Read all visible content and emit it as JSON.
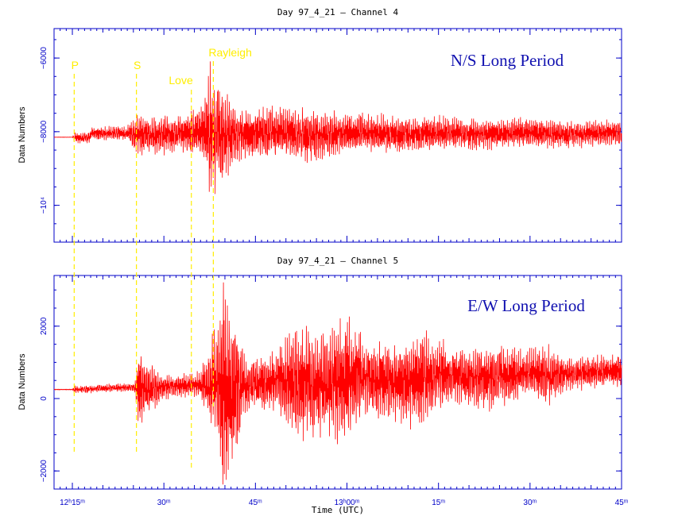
{
  "chart_data": [
    {
      "type": "line",
      "title": "Day 97_4_21  — Channel 4",
      "annotation": "N/S Long Period",
      "ylabel": "Data Numbers",
      "ylim": [
        -11000,
        -5200
      ],
      "yticks": [
        {
          "value": -6000,
          "label": "−6000"
        },
        {
          "value": -8000,
          "label": "−8000"
        },
        {
          "value": -10000,
          "label": "−10⁴"
        }
      ],
      "xlim": [
        12.2,
        13.75
      ],
      "series": [
        {
          "color": "#ff0000",
          "pre_event_level": -8150,
          "envelope": [
            {
              "t": 12.2,
              "amp": 5
            },
            {
              "t": 12.25,
              "amp": 5
            },
            {
              "t": 12.255,
              "amp": 150
            },
            {
              "t": 12.4,
              "amp": 200
            },
            {
              "t": 12.425,
              "amp": 550
            },
            {
              "t": 12.55,
              "amp": 500
            },
            {
              "t": 12.61,
              "amp": 800
            },
            {
              "t": 12.625,
              "amp": 1800
            },
            {
              "t": 12.64,
              "amp": 1500
            },
            {
              "t": 12.7,
              "amp": 700
            },
            {
              "t": 12.85,
              "amp": 650
            },
            {
              "t": 12.9,
              "amp": 700
            },
            {
              "t": 13.0,
              "amp": 550
            },
            {
              "t": 13.2,
              "amp": 450
            },
            {
              "t": 13.4,
              "amp": 400
            },
            {
              "t": 13.75,
              "amp": 350
            }
          ]
        }
      ],
      "phase_markers": [
        {
          "label": "P",
          "t": 12.255
        },
        {
          "label": "S",
          "t": 12.425
        },
        {
          "label": "Love",
          "t": 12.575
        },
        {
          "label": "Rayleigh",
          "t": 12.635
        }
      ]
    },
    {
      "type": "line",
      "title": "Day 97_4_21  — Channel 5",
      "annotation": "E/W Long Period",
      "ylabel": "Data Numbers",
      "ylim": [
        -2500,
        3400
      ],
      "yticks": [
        {
          "value": 2000,
          "label": "2000"
        },
        {
          "value": 0,
          "label": "0"
        },
        {
          "value": -2000,
          "label": "−2000"
        }
      ],
      "xlim": [
        12.2,
        13.75
      ],
      "xticks": [
        {
          "value": 12.25,
          "label": "12ʰ15ᵐ"
        },
        {
          "value": 12.5,
          "label": "30ᵐ"
        },
        {
          "value": 12.75,
          "label": "45ᵐ"
        },
        {
          "value": 13.0,
          "label": "13ʰ00ᵐ"
        },
        {
          "value": 13.25,
          "label": "15ᵐ"
        },
        {
          "value": 13.5,
          "label": "30ᵐ"
        },
        {
          "value": 13.75,
          "label": "45ᵐ"
        }
      ],
      "xlabel": "Time (UTC)",
      "series": [
        {
          "color": "#ff0000",
          "pre_event_level": 250,
          "drift_end_level": 750,
          "envelope": [
            {
              "t": 12.2,
              "amp": 10
            },
            {
              "t": 12.25,
              "amp": 10
            },
            {
              "t": 12.255,
              "amp": 100
            },
            {
              "t": 12.42,
              "amp": 120
            },
            {
              "t": 12.43,
              "amp": 1100
            },
            {
              "t": 12.46,
              "amp": 700
            },
            {
              "t": 12.5,
              "amp": 300
            },
            {
              "t": 12.6,
              "amp": 350
            },
            {
              "t": 12.64,
              "amp": 1500
            },
            {
              "t": 12.66,
              "amp": 2900
            },
            {
              "t": 12.69,
              "amp": 2000
            },
            {
              "t": 12.73,
              "amp": 700
            },
            {
              "t": 12.8,
              "amp": 800
            },
            {
              "t": 12.86,
              "amp": 1500
            },
            {
              "t": 12.95,
              "amp": 1500
            },
            {
              "t": 13.0,
              "amp": 1700
            },
            {
              "t": 13.05,
              "amp": 1200
            },
            {
              "t": 13.1,
              "amp": 1000
            },
            {
              "t": 13.2,
              "amp": 1300
            },
            {
              "t": 13.3,
              "amp": 700
            },
            {
              "t": 13.4,
              "amp": 900
            },
            {
              "t": 13.5,
              "amp": 650
            },
            {
              "t": 13.55,
              "amp": 800
            },
            {
              "t": 13.6,
              "amp": 450
            },
            {
              "t": 13.75,
              "amp": 450
            }
          ]
        }
      ]
    }
  ]
}
